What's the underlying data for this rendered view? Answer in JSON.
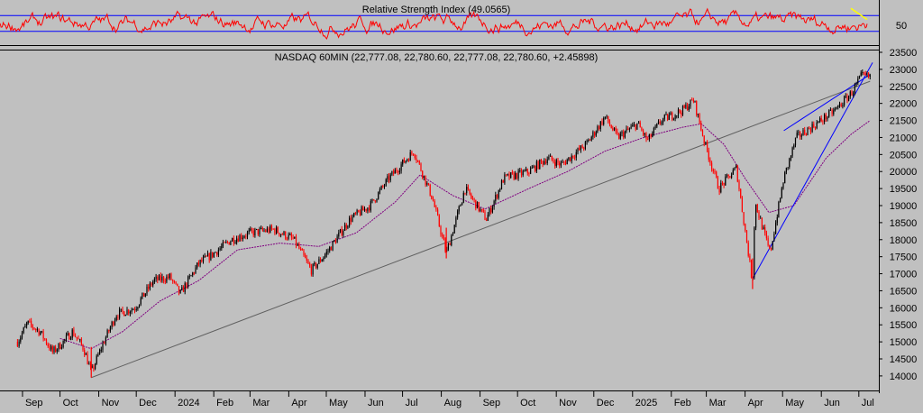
{
  "rsi_panel": {
    "title": "Relative Strength Index (49.0565)",
    "y_tick": "50",
    "upper_level": 70,
    "lower_level": 30,
    "last_value": 49.0565
  },
  "price_panel": {
    "title": "NASDAQ 60MIN (22,777.08, 22,780.60, 22,777.08, 22,780.60, +2.45898)"
  },
  "colors": {
    "background": "#c0c0c0",
    "candle_up": "#000000",
    "candle_down": "#ff0000",
    "rsi_line": "#ff0000",
    "rsi_levels": "#0000ff",
    "moving_average": "#800080",
    "long_trendline": "#606060",
    "channel_lines": "#0000ff",
    "rsi_highlight": "#ffff00"
  },
  "x_axis": {
    "labels": [
      "Sep",
      "Oct",
      "Nov",
      "Dec",
      "2024",
      "Feb",
      "Mar",
      "Apr",
      "May",
      "Jun",
      "Jul",
      "Aug",
      "Sep",
      "Oct",
      "Nov",
      "Dec",
      "2025",
      "Feb",
      "Mar",
      "Apr",
      "May",
      "Jun",
      "Jul"
    ]
  },
  "chart_data": {
    "type": "candlestick",
    "title": "NASDAQ 60MIN (22,777.08, 22,780.60, 22,777.08, 22,780.60, +2.45898)",
    "timeframe": "60MIN",
    "last_bar": {
      "open": 22777.08,
      "high": 22780.6,
      "low": 22777.08,
      "close": 22780.6,
      "change": 2.45898
    },
    "ylim": [
      13600,
      23500
    ],
    "y_ticks": [
      14000,
      14500,
      15000,
      15500,
      16000,
      16500,
      17000,
      17500,
      18000,
      18500,
      19000,
      19500,
      20000,
      20500,
      21000,
      21500,
      22000,
      22500,
      23000,
      23500
    ],
    "x_ticks": [
      "Sep",
      "Oct",
      "Nov",
      "Dec",
      "2024",
      "Feb",
      "Mar",
      "Apr",
      "May",
      "Jun",
      "Jul",
      "Aug",
      "Sep",
      "Oct",
      "Nov",
      "Dec",
      "2025",
      "Feb",
      "Mar",
      "Apr",
      "May",
      "Jun",
      "Jul"
    ],
    "price_path": [
      [
        "2023-08-28",
        15000
      ],
      [
        "2023-09-05",
        15550
      ],
      [
        "2023-09-15",
        15300
      ],
      [
        "2023-09-25",
        14700
      ],
      [
        "2023-10-01",
        14900
      ],
      [
        "2023-10-11",
        15300
      ],
      [
        "2023-10-20",
        14800
      ],
      [
        "2023-10-26",
        14100
      ],
      [
        "2023-11-05",
        15000
      ],
      [
        "2023-11-15",
        15800
      ],
      [
        "2023-11-30",
        16000
      ],
      [
        "2023-12-15",
        16800
      ],
      [
        "2023-12-28",
        16900
      ],
      [
        "2024-01-05",
        16400
      ],
      [
        "2024-01-20",
        17300
      ],
      [
        "2024-02-01",
        17600
      ],
      [
        "2024-02-15",
        18000
      ],
      [
        "2024-03-01",
        18200
      ],
      [
        "2024-03-20",
        18300
      ],
      [
        "2024-04-05",
        18000
      ],
      [
        "2024-04-19",
        17100
      ],
      [
        "2024-05-01",
        17600
      ],
      [
        "2024-05-20",
        18600
      ],
      [
        "2024-06-05",
        19000
      ],
      [
        "2024-06-20",
        19800
      ],
      [
        "2024-07-10",
        20600
      ],
      [
        "2024-07-25",
        19200
      ],
      [
        "2024-08-05",
        17600
      ],
      [
        "2024-08-20",
        19500
      ],
      [
        "2024-09-06",
        18600
      ],
      [
        "2024-09-20",
        19800
      ],
      [
        "2024-10-10",
        20000
      ],
      [
        "2024-10-25",
        20400
      ],
      [
        "2024-11-05",
        20200
      ],
      [
        "2024-11-25",
        20800
      ],
      [
        "2024-12-10",
        21600
      ],
      [
        "2024-12-20",
        21000
      ],
      [
        "2025-01-05",
        21400
      ],
      [
        "2025-01-13",
        20900
      ],
      [
        "2025-01-24",
        21500
      ],
      [
        "2025-02-10",
        21800
      ],
      [
        "2025-02-19",
        22100
      ],
      [
        "2025-02-28",
        20800
      ],
      [
        "2025-03-11",
        19500
      ],
      [
        "2025-03-25",
        20100
      ],
      [
        "2025-04-04",
        17500
      ],
      [
        "2025-04-07",
        16700
      ],
      [
        "2025-04-09",
        19100
      ],
      [
        "2025-04-21",
        17600
      ],
      [
        "2025-05-02",
        19800
      ],
      [
        "2025-05-12",
        21000
      ],
      [
        "2025-05-28",
        21400
      ],
      [
        "2025-06-12",
        21800
      ],
      [
        "2025-06-25",
        22300
      ],
      [
        "2025-07-03",
        22800
      ],
      [
        "2025-07-10",
        22780.6
      ]
    ],
    "moving_average_path": [
      [
        "2023-10-01",
        15100
      ],
      [
        "2023-10-26",
        14800
      ],
      [
        "2023-11-20",
        15300
      ],
      [
        "2023-12-20",
        16200
      ],
      [
        "2024-01-20",
        16800
      ],
      [
        "2024-02-20",
        17700
      ],
      [
        "2024-03-25",
        17900
      ],
      [
        "2024-04-25",
        17800
      ],
      [
        "2024-05-25",
        18200
      ],
      [
        "2024-06-25",
        19100
      ],
      [
        "2024-07-15",
        19900
      ],
      [
        "2024-08-10",
        19300
      ],
      [
        "2024-09-05",
        18900
      ],
      [
        "2024-10-10",
        19500
      ],
      [
        "2024-11-10",
        20000
      ],
      [
        "2024-12-10",
        20600
      ],
      [
        "2025-01-10",
        21000
      ],
      [
        "2025-02-10",
        21300
      ],
      [
        "2025-02-25",
        21400
      ],
      [
        "2025-03-15",
        20800
      ],
      [
        "2025-04-01",
        19800
      ],
      [
        "2025-04-20",
        18800
      ],
      [
        "2025-05-10",
        19000
      ],
      [
        "2025-06-05",
        20400
      ],
      [
        "2025-06-25",
        21100
      ],
      [
        "2025-07-10",
        21500
      ]
    ],
    "trendlines": [
      {
        "kind": "long_support",
        "from": [
          "2023-10-26",
          13950
        ],
        "to": [
          "2025-07-10",
          22650
        ]
      },
      {
        "kind": "rising_support",
        "from": [
          "2025-04-07",
          16850
        ],
        "to": [
          "2025-07-12",
          23200
        ]
      },
      {
        "kind": "channel_top",
        "from": [
          "2025-05-02",
          21200
        ],
        "to": [
          "2025-07-10",
          22850
        ]
      }
    ],
    "rsi": {
      "ylim": [
        0,
        100
      ],
      "levels": [
        30,
        70
      ],
      "last": 49.0565
    }
  }
}
